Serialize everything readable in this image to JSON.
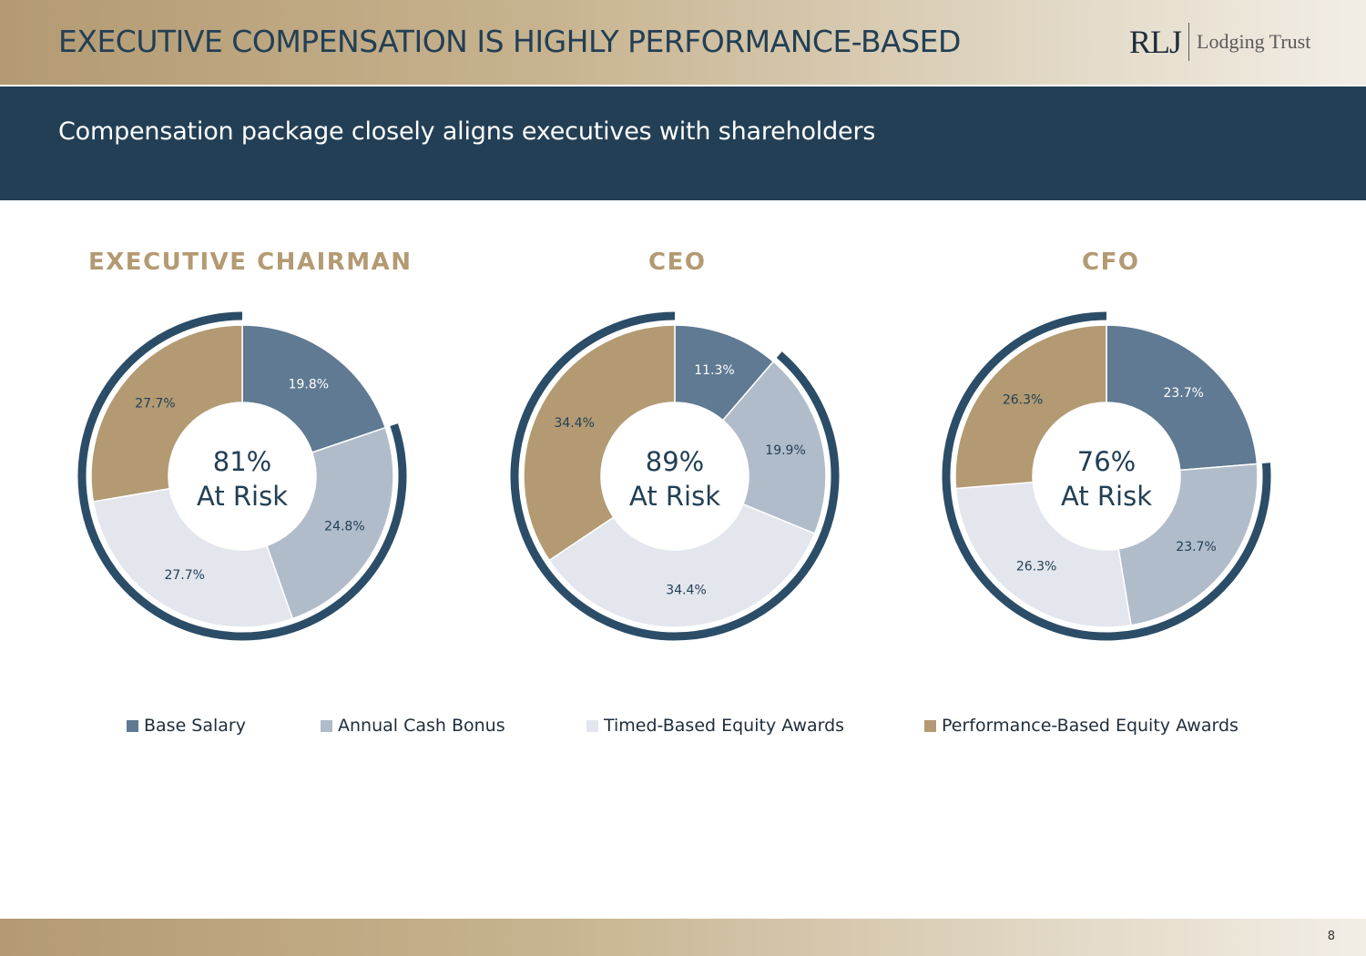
{
  "header": {
    "title": "EXECUTIVE COMPENSATION IS HIGHLY PERFORMANCE-BASED",
    "logo_mark": "RLJ",
    "logo_text": "Lodging Trust"
  },
  "banner": {
    "subtitle": "Compensation package closely aligns executives with shareholders"
  },
  "colors": {
    "base_salary": "#5f7a92",
    "annual_cash_bonus": "#b1bccb",
    "timed_based_equity": "#e3e6ec",
    "performance_based_equity": "#b39a72",
    "at_risk_arc": "#2c4d68",
    "navy": "#223f55",
    "gold": "#b39a72"
  },
  "chart_data": [
    {
      "type": "pie",
      "title": "EXECUTIVE CHAIRMAN",
      "center_value": "81%",
      "center_label": "At Risk",
      "categories": [
        "Base Salary",
        "Annual Cash Bonus",
        "Timed-Based Equity Awards",
        "Performance-Based Equity Awards"
      ],
      "values": [
        19.8,
        24.8,
        27.7,
        27.7
      ],
      "labels": [
        "19.8%",
        "24.8%",
        "27.7%",
        "27.7%"
      ]
    },
    {
      "type": "pie",
      "title": "CEO",
      "center_value": "89%",
      "center_label": "At Risk",
      "categories": [
        "Base Salary",
        "Annual Cash Bonus",
        "Timed-Based Equity Awards",
        "Performance-Based Equity Awards"
      ],
      "values": [
        11.3,
        19.9,
        34.4,
        34.4
      ],
      "labels": [
        "11.3%",
        "19.9%",
        "34.4%",
        "34.4%"
      ]
    },
    {
      "type": "pie",
      "title": "CFO",
      "center_value": "76%",
      "center_label": "At Risk",
      "categories": [
        "Base Salary",
        "Annual Cash Bonus",
        "Timed-Based Equity Awards",
        "Performance-Based Equity Awards"
      ],
      "values": [
        23.7,
        23.7,
        26.3,
        26.3
      ],
      "labels": [
        "23.7%",
        "23.7%",
        "26.3%",
        "26.3%"
      ]
    }
  ],
  "legend": [
    {
      "label": "Base Salary",
      "color": "#5f7a92"
    },
    {
      "label": "Annual Cash Bonus",
      "color": "#b1bccb"
    },
    {
      "label": "Timed-Based Equity Awards",
      "color": "#e3e6ec"
    },
    {
      "label": "Performance-Based Equity Awards",
      "color": "#b39a72"
    }
  ],
  "footer": {
    "page_number": "8"
  }
}
